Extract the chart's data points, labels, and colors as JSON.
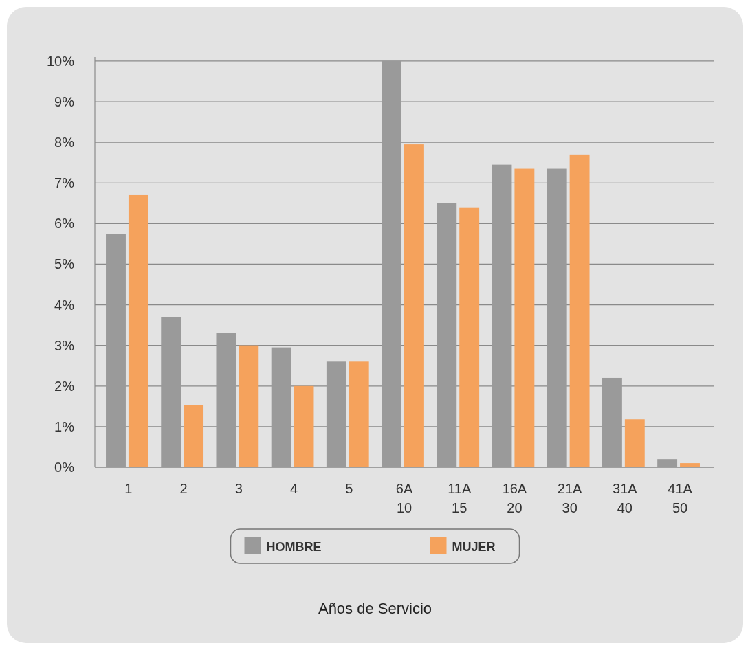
{
  "chart_data": {
    "type": "bar",
    "annotations": [
      "Años de Servicio"
    ],
    "categories": [
      "1",
      "2",
      "3",
      "4",
      "5",
      "6A 10",
      "11A 15",
      "16A 20",
      "21A 30",
      "31A 40",
      "41A 50"
    ],
    "series": [
      {
        "name": "HOMBRE",
        "color": "#9a9a9a",
        "values": [
          5.75,
          3.7,
          3.3,
          2.95,
          2.6,
          10,
          6.5,
          7.45,
          7.35,
          2.2,
          0.2
        ]
      },
      {
        "name": "MUJER",
        "color": "#f5a25c",
        "values": [
          6.7,
          1.53,
          3.0,
          2.0,
          2.6,
          7.95,
          6.4,
          7.35,
          7.7,
          1.18,
          0.1
        ]
      }
    ],
    "ylim": [
      0,
      10.1
    ],
    "yticks": [
      {
        "value": 0,
        "label": "0%"
      },
      {
        "value": 1,
        "label": "1%"
      },
      {
        "value": 2,
        "label": "2%"
      },
      {
        "value": 3,
        "label": "3%"
      },
      {
        "value": 4,
        "label": "4%"
      },
      {
        "value": 5,
        "label": "5%"
      },
      {
        "value": 6,
        "label": "6%"
      },
      {
        "value": 7,
        "label": "7%"
      },
      {
        "value": 8,
        "label": "8%"
      },
      {
        "value": 9,
        "label": "9%"
      },
      {
        "value": 10,
        "label": "10%"
      }
    ],
    "grid": "y",
    "legend": "bottom"
  }
}
